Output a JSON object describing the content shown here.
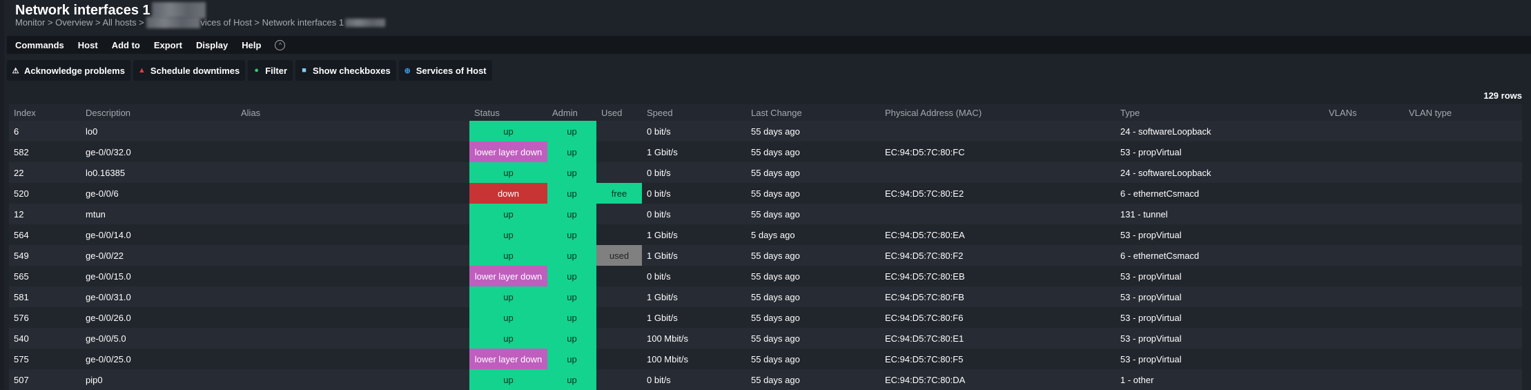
{
  "title": "Network interfaces 1",
  "breadcrumb": {
    "part1": "Monitor > Overview > All hosts > ",
    "part2": "vices of Host > Network interfaces 1"
  },
  "menu": [
    "Commands",
    "Host",
    "Add to",
    "Export",
    "Display",
    "Help"
  ],
  "buttons": [
    {
      "label": "Acknowledge problems",
      "icon": "warning-icon",
      "color": "#ffffff"
    },
    {
      "label": "Schedule downtimes",
      "icon": "traffic-cone-icon",
      "color": "#e83b3b"
    },
    {
      "label": "Filter",
      "icon": "filter-icon",
      "color": "#2ecc71"
    },
    {
      "label": "Show checkboxes",
      "icon": "checkbox-icon",
      "color": "#7fd0f0"
    },
    {
      "label": "Services of Host",
      "icon": "arrow-up-circle-icon",
      "color": "#3a9ae8"
    }
  ],
  "row_count": "129 rows",
  "colors": {
    "up": "#13d38e",
    "lower_layer_down": "#bf5ebe",
    "down": "#c83333",
    "used": "#808080"
  },
  "columns": [
    "Index",
    "Description",
    "Alias",
    "Status",
    "Admin",
    "Used",
    "Speed",
    "Last Change",
    "Physical Address (MAC)",
    "Type",
    "VLANs",
    "VLAN type"
  ],
  "rows": [
    {
      "index": "6",
      "desc": "lo0",
      "alias": "",
      "status": "up",
      "admin": "up",
      "used": "",
      "speed": "0 bit/s",
      "change": "55 days ago",
      "mac": "",
      "type": "24 - softwareLoopback",
      "vlans": "",
      "vlantype": ""
    },
    {
      "index": "582",
      "desc": "ge-0/0/32.0",
      "alias": "",
      "status": "lower layer down",
      "admin": "up",
      "used": "",
      "speed": "1 Gbit/s",
      "change": "55 days ago",
      "mac": "EC:94:D5:7C:80:FC",
      "type": "53 - propVirtual",
      "vlans": "",
      "vlantype": ""
    },
    {
      "index": "22",
      "desc": "lo0.16385",
      "alias": "",
      "status": "up",
      "admin": "up",
      "used": "",
      "speed": "0 bit/s",
      "change": "55 days ago",
      "mac": "",
      "type": "24 - softwareLoopback",
      "vlans": "",
      "vlantype": ""
    },
    {
      "index": "520",
      "desc": "ge-0/0/6",
      "alias": "",
      "status": "down",
      "admin": "up",
      "used": "free",
      "speed": "0 bit/s",
      "change": "55 days ago",
      "mac": "EC:94:D5:7C:80:E2",
      "type": "6 - ethernetCsmacd",
      "vlans": "",
      "vlantype": ""
    },
    {
      "index": "12",
      "desc": "mtun",
      "alias": "",
      "status": "up",
      "admin": "up",
      "used": "",
      "speed": "0 bit/s",
      "change": "55 days ago",
      "mac": "",
      "type": "131 - tunnel",
      "vlans": "",
      "vlantype": ""
    },
    {
      "index": "564",
      "desc": "ge-0/0/14.0",
      "alias": "",
      "status": "up",
      "admin": "up",
      "used": "",
      "speed": "1 Gbit/s",
      "change": "5 days ago",
      "mac": "EC:94:D5:7C:80:EA",
      "type": "53 - propVirtual",
      "vlans": "",
      "vlantype": ""
    },
    {
      "index": "549",
      "desc": "ge-0/0/22",
      "alias": "",
      "status": "up",
      "admin": "up",
      "used": "used",
      "speed": "1 Gbit/s",
      "change": "55 days ago",
      "mac": "EC:94:D5:7C:80:F2",
      "type": "6 - ethernetCsmacd",
      "vlans": "",
      "vlantype": ""
    },
    {
      "index": "565",
      "desc": "ge-0/0/15.0",
      "alias": "",
      "status": "lower layer down",
      "admin": "up",
      "used": "",
      "speed": "0 bit/s",
      "change": "55 days ago",
      "mac": "EC:94:D5:7C:80:EB",
      "type": "53 - propVirtual",
      "vlans": "",
      "vlantype": ""
    },
    {
      "index": "581",
      "desc": "ge-0/0/31.0",
      "alias": "",
      "status": "up",
      "admin": "up",
      "used": "",
      "speed": "1 Gbit/s",
      "change": "55 days ago",
      "mac": "EC:94:D5:7C:80:FB",
      "type": "53 - propVirtual",
      "vlans": "",
      "vlantype": ""
    },
    {
      "index": "576",
      "desc": "ge-0/0/26.0",
      "alias": "",
      "status": "up",
      "admin": "up",
      "used": "",
      "speed": "1 Gbit/s",
      "change": "55 days ago",
      "mac": "EC:94:D5:7C:80:F6",
      "type": "53 - propVirtual",
      "vlans": "",
      "vlantype": ""
    },
    {
      "index": "540",
      "desc": "ge-0/0/5.0",
      "alias": "",
      "status": "up",
      "admin": "up",
      "used": "",
      "speed": "100 Mbit/s",
      "change": "55 days ago",
      "mac": "EC:94:D5:7C:80:E1",
      "type": "53 - propVirtual",
      "vlans": "",
      "vlantype": ""
    },
    {
      "index": "575",
      "desc": "ge-0/0/25.0",
      "alias": "",
      "status": "lower layer down",
      "admin": "up",
      "used": "",
      "speed": "100 Mbit/s",
      "change": "55 days ago",
      "mac": "EC:94:D5:7C:80:F5",
      "type": "53 - propVirtual",
      "vlans": "",
      "vlantype": ""
    },
    {
      "index": "507",
      "desc": "pip0",
      "alias": "",
      "status": "up",
      "admin": "up",
      "used": "",
      "speed": "0 bit/s",
      "change": "55 days ago",
      "mac": "EC:94:D5:7C:80:DA",
      "type": "1 - other",
      "vlans": "",
      "vlantype": ""
    }
  ]
}
